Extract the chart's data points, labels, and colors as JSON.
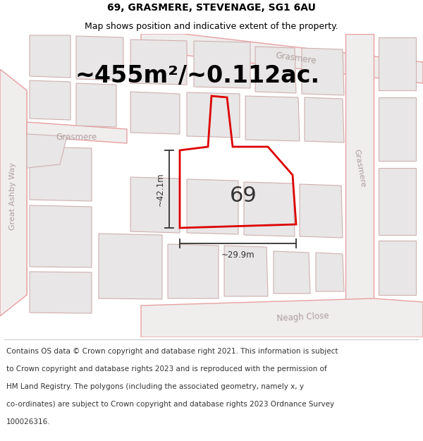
{
  "title_line1": "69, GRASMERE, STEVENAGE, SG1 6AU",
  "title_line2": "Map shows position and indicative extent of the property.",
  "area_text": "~455m²/~0.112ac.",
  "dim_horizontal": "~29.9m",
  "dim_vertical": "~42.1m",
  "property_label": "69",
  "footer_lines": [
    "Contains OS data © Crown copyright and database right 2021. This information is subject",
    "to Crown copyright and database rights 2023 and is reproduced with the permission of",
    "HM Land Registry. The polygons (including the associated geometry, namely x, y",
    "co-ordinates) are subject to Crown copyright and database rights 2023 Ordnance Survey",
    "100026316."
  ],
  "map_bg": "#f5f3f3",
  "property_edge": "#dd0000",
  "road_line_color": "#e8a0a0",
  "building_fill": "#e8e6e6",
  "building_edge": "#d0b0b0",
  "dim_line_color": "#333333",
  "street_label_color": "#b0a0a0",
  "green_area_color": "#d8e8cc",
  "title_fontsize": 10,
  "subtitle_fontsize": 9,
  "area_fontsize": 24,
  "dim_fontsize": 8.5,
  "property_label_fontsize": 22,
  "footer_fontsize": 7.5,
  "street_fontsize": 8.5
}
